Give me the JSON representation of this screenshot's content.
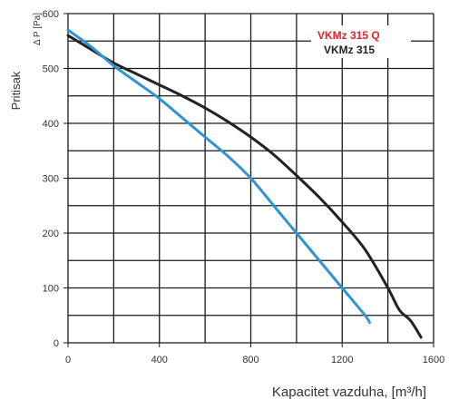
{
  "chart_data": {
    "type": "line",
    "title": "",
    "xlabel": "Kapacitet vazduha, [m³/h]",
    "ylabel": "Pritisak",
    "ylabel_symbol": "Δ P [Pa]",
    "xlim": [
      0,
      1600
    ],
    "ylim": [
      0,
      600
    ],
    "x_ticks": [
      0,
      400,
      800,
      1200,
      1600
    ],
    "x_tick_labels": [
      "0",
      "400",
      "800",
      "1200",
      "1600"
    ],
    "y_ticks": [
      0,
      100,
      200,
      300,
      400,
      500,
      600
    ],
    "y_tick_labels": [
      "0",
      "100",
      "200",
      "300",
      "400",
      "500",
      "600"
    ],
    "grid": true,
    "grid_x_step": 200,
    "grid_y_step": 50,
    "legend_position": "top-right",
    "series": [
      {
        "name": "VKMz 315 Q",
        "color": "#e2232b",
        "line_color": "#2f93d6",
        "x": [
          0,
          100,
          200,
          300,
          400,
          500,
          600,
          700,
          800,
          900,
          1000,
          1100,
          1200,
          1300,
          1320
        ],
        "y": [
          570,
          540,
          505,
          475,
          445,
          410,
          375,
          340,
          300,
          250,
          200,
          150,
          100,
          50,
          37
        ]
      },
      {
        "name": "VKMz 315",
        "color": "#222222",
        "line_color": "#222222",
        "x": [
          0,
          100,
          200,
          300,
          400,
          500,
          600,
          700,
          800,
          900,
          1000,
          1100,
          1200,
          1300,
          1400,
          1450,
          1500,
          1545
        ],
        "y": [
          560,
          535,
          510,
          490,
          470,
          450,
          428,
          403,
          375,
          343,
          305,
          265,
          220,
          170,
          100,
          60,
          40,
          10
        ]
      }
    ]
  }
}
